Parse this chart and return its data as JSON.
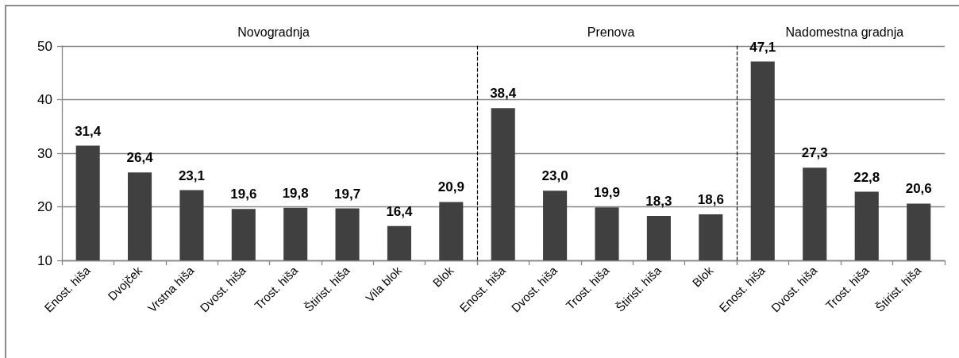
{
  "chart_data": [
    {
      "type": "bar",
      "title": "Novogradnja",
      "categories": [
        "Enost. hiša",
        "Dvojček",
        "Vrstna hiša",
        "Dvost. hiša",
        "Trost. hiša",
        "Štirist. hiša",
        "Vila blok",
        "Blok"
      ],
      "values": [
        31.4,
        26.4,
        23.1,
        19.6,
        19.8,
        19.7,
        16.4,
        20.9
      ],
      "value_labels": [
        "31,4",
        "26,4",
        "23,1",
        "19,6",
        "19,8",
        "19,7",
        "16,4",
        "20,9"
      ],
      "color": "#404040",
      "ylim": [
        10,
        50
      ],
      "yticks": [
        10,
        20,
        30,
        40,
        50
      ],
      "grid": "y"
    },
    {
      "type": "bar",
      "title": "Prenova",
      "categories": [
        "Enost. hiša",
        "Dvost. hiša",
        "Trost. hiša",
        "Štirist. hiša",
        "Blok"
      ],
      "values": [
        38.4,
        23.0,
        19.9,
        18.3,
        18.6
      ],
      "value_labels": [
        "38,4",
        "23,0",
        "19,9",
        "18,3",
        "18,6"
      ],
      "color": "#404040",
      "ylim": [
        10,
        50
      ],
      "yticks": [
        10,
        20,
        30,
        40,
        50
      ],
      "grid": "y",
      "tick_labels": "x"
    },
    {
      "type": "bar",
      "title": "Nadomestna gradnja",
      "categories": [
        "Enost. hiša",
        "Dvost. hiša",
        "Trost. hiša",
        "Štirist. hiša"
      ],
      "values": [
        47.1,
        27.3,
        22.8,
        20.6
      ],
      "value_labels": [
        "47,1",
        "27,3",
        "22,8",
        "20,6"
      ],
      "color": "#404040",
      "ylim": [
        10,
        50
      ],
      "yticks": [
        10,
        20,
        30,
        40,
        50
      ],
      "grid": "y",
      "tick_labels": "x"
    }
  ]
}
